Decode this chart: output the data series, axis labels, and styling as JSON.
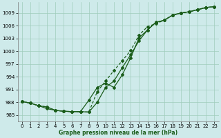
{
  "xlabel": "Graphe pression niveau de la mer (hPa)",
  "x_ticks": [
    0,
    1,
    2,
    3,
    4,
    5,
    6,
    7,
    8,
    9,
    10,
    11,
    12,
    13,
    14,
    15,
    16,
    17,
    18,
    19,
    20,
    21,
    22,
    23
  ],
  "ylim": [
    983.5,
    1011.5
  ],
  "yticks": [
    985,
    988,
    991,
    994,
    997,
    1000,
    1003,
    1006,
    1009
  ],
  "xlim": [
    -0.5,
    23.5
  ],
  "bg_color": "#ceeaea",
  "grid_color": "#a0ccbb",
  "line_color": "#1a5c1a",
  "series1_x": [
    0,
    1,
    2,
    3,
    4,
    5,
    6,
    7,
    8,
    9,
    10,
    11,
    12,
    13,
    14,
    15,
    16,
    17,
    18,
    19,
    20,
    21,
    22,
    23
  ],
  "series1_y": [
    988.2,
    987.8,
    987.2,
    986.9,
    986.1,
    985.9,
    985.8,
    985.8,
    985.7,
    988.0,
    991.5,
    993.0,
    996.2,
    999.2,
    1002.5,
    1005.0,
    1006.8,
    1007.3,
    1008.5,
    1009.0,
    1009.3,
    1009.8,
    1010.3,
    1010.5
  ],
  "series2_x": [
    0,
    1,
    2,
    3,
    4,
    5,
    6,
    7,
    8,
    9,
    10,
    11,
    12,
    13,
    14,
    15,
    16,
    17,
    18,
    19,
    20,
    21,
    22,
    23
  ],
  "series2_y": [
    988.2,
    987.8,
    987.2,
    986.9,
    986.1,
    985.9,
    985.8,
    985.8,
    985.7,
    990.5,
    993.0,
    995.5,
    997.8,
    1000.2,
    1003.8,
    1005.8,
    1006.5,
    1007.3,
    1008.5,
    1009.0,
    1009.3,
    1009.8,
    1010.3,
    1010.5
  ],
  "series3_x": [
    0,
    1,
    2,
    3,
    4,
    5,
    6,
    7,
    8,
    9,
    10,
    11,
    12,
    13,
    14,
    15,
    16,
    17,
    18,
    19,
    20,
    21,
    22,
    23
  ],
  "series3_y": [
    988.2,
    987.8,
    987.2,
    986.5,
    986.1,
    985.9,
    985.8,
    985.8,
    988.5,
    991.5,
    992.5,
    991.5,
    994.5,
    998.5,
    1003.2,
    1005.0,
    1006.8,
    1007.3,
    1008.5,
    1009.0,
    1009.3,
    1009.8,
    1010.3,
    1010.5
  ],
  "ms": 2.0,
  "lw": 0.9,
  "xlabel_fontsize": 5.5,
  "tick_fontsize": 5
}
